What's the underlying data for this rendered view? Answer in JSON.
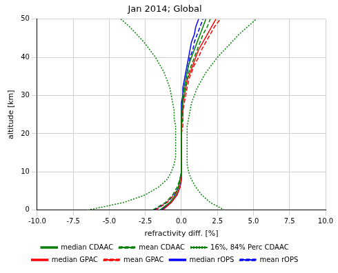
{
  "chart_data": {
    "type": "line",
    "title": "Jan 2014; Global",
    "x_label": "refractivity diff. [%]",
    "y_label": "altitude [km]",
    "y": [
      0,
      2,
      4,
      6,
      8,
      10,
      12,
      14,
      16,
      18,
      20,
      22,
      24,
      26,
      28,
      30,
      32,
      34,
      36,
      38,
      40,
      42,
      44,
      46,
      48,
      50
    ],
    "orientation": "horizontal",
    "series": [
      {
        "name": "median CDAAC",
        "color": "#008000",
        "line_style": "solid",
        "values": [
          -1.5,
          -0.8,
          -0.4,
          -0.2,
          -0.1,
          0.0,
          0.0,
          0.0,
          0.0,
          0.0,
          0.0,
          0.0,
          0.0,
          0.0,
          0.1,
          0.1,
          0.2,
          0.3,
          0.4,
          0.5,
          0.7,
          0.9,
          1.1,
          1.3,
          1.5,
          1.7
        ]
      },
      {
        "name": "mean CDAAC",
        "color": "#008000",
        "line_style": "dashed",
        "values": [
          -2.0,
          -1.1,
          -0.6,
          -0.3,
          -0.1,
          0.0,
          0.0,
          0.0,
          0.0,
          0.0,
          0.0,
          0.0,
          0.1,
          0.1,
          0.1,
          0.2,
          0.3,
          0.4,
          0.5,
          0.7,
          0.9,
          1.1,
          1.3,
          1.5,
          1.8,
          2.0
        ]
      },
      {
        "name": "16%, 84% Perc CDAAC",
        "color": "#008000",
        "line_style": "dotted",
        "values": [
          -6.5,
          -4.0,
          -2.5,
          -1.6,
          -1.0,
          -0.7,
          -0.5,
          -0.4,
          -0.4,
          -0.4,
          -0.4,
          -0.4,
          -0.5,
          -0.5,
          -0.6,
          -0.7,
          -0.8,
          -1.0,
          -1.2,
          -1.5,
          -1.8,
          -2.2,
          -2.6,
          -3.1,
          -3.6,
          -4.2
        ],
        "upper": [
          3.0,
          2.0,
          1.4,
          1.0,
          0.7,
          0.5,
          0.4,
          0.4,
          0.4,
          0.4,
          0.4,
          0.4,
          0.5,
          0.6,
          0.7,
          0.9,
          1.1,
          1.4,
          1.7,
          2.1,
          2.5,
          3.0,
          3.5,
          4.0,
          4.6,
          5.2
        ]
      },
      {
        "name": "median GPAC",
        "color": "#ff0000",
        "line_style": "solid",
        "values": [
          -1.3,
          -0.7,
          -0.3,
          -0.1,
          0.0,
          0.0,
          0.0,
          0.0,
          0.0,
          0.0,
          0.0,
          0.0,
          0.0,
          0.1,
          0.1,
          0.2,
          0.3,
          0.4,
          0.6,
          0.8,
          1.0,
          1.2,
          1.5,
          1.8,
          2.1,
          2.4
        ]
      },
      {
        "name": "mean GPAC",
        "color": "#ff0000",
        "line_style": "dashed",
        "values": [
          -1.8,
          -1.0,
          -0.5,
          -0.2,
          -0.1,
          0.0,
          0.0,
          0.0,
          0.0,
          0.0,
          0.0,
          0.1,
          0.1,
          0.1,
          0.2,
          0.3,
          0.4,
          0.5,
          0.7,
          0.9,
          1.2,
          1.4,
          1.7,
          2.0,
          2.3,
          2.7
        ]
      },
      {
        "name": "median rOPS",
        "color": "#0000ff",
        "line_style": "solid",
        "values": [
          -1.4,
          -0.7,
          -0.3,
          -0.1,
          0.0,
          0.0,
          0.0,
          0.0,
          0.0,
          0.0,
          0.0,
          0.0,
          0.0,
          0.0,
          0.0,
          0.1,
          0.1,
          0.2,
          0.3,
          0.4,
          0.5,
          0.6,
          0.7,
          0.9,
          1.0,
          1.2
        ]
      },
      {
        "name": "mean rOPS",
        "color": "#0000ff",
        "line_style": "dashed",
        "values": [
          -1.9,
          -1.0,
          -0.5,
          -0.2,
          -0.1,
          0.0,
          0.0,
          0.0,
          0.0,
          0.0,
          0.0,
          0.0,
          0.0,
          0.1,
          0.1,
          0.1,
          0.2,
          0.3,
          0.4,
          0.5,
          0.6,
          0.8,
          0.9,
          1.1,
          1.3,
          1.5
        ]
      }
    ],
    "xlim": [
      -10,
      10
    ],
    "xticks": [
      {
        "value": -10,
        "label": "-10.0"
      },
      {
        "value": -7.5,
        "label": "-7.5"
      },
      {
        "value": -5,
        "label": "-5.0"
      },
      {
        "value": -2.5,
        "label": "-2.5"
      },
      {
        "value": 0,
        "label": "0.0"
      },
      {
        "value": 2.5,
        "label": "2.5"
      },
      {
        "value": 5,
        "label": "5.0"
      },
      {
        "value": 7.5,
        "label": "7.5"
      },
      {
        "value": 10,
        "label": "10.0"
      }
    ],
    "ylim": [
      0,
      50
    ],
    "yticks": [
      0,
      10,
      20,
      30,
      40,
      50
    ],
    "grid": true,
    "legend": "bottom"
  }
}
